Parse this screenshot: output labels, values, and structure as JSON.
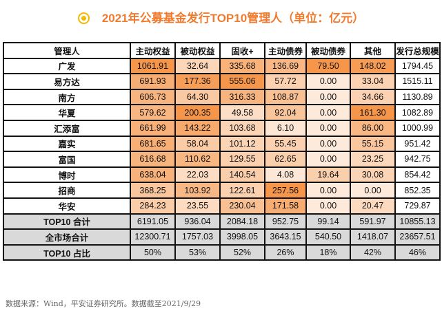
{
  "title": "2021年公募基金发行TOP10管理人（单位：亿元）",
  "colors": {
    "low": "#fdeadb",
    "high": "#f5964a",
    "summary": "#d9d9d9",
    "title": "#f07b2e"
  },
  "headers": [
    "管理人",
    "主动权益",
    "被动权益",
    "固收+",
    "主动债券",
    "被动债券",
    "其他",
    "发行总规模"
  ],
  "rows": [
    [
      "广发",
      "1061.91",
      "32.64",
      "335.68",
      "136.69",
      "79.50",
      "148.02",
      "1794.45"
    ],
    [
      "易方达",
      "691.93",
      "177.36",
      "555.06",
      "57.72",
      "0.00",
      "33.04",
      "1515.11"
    ],
    [
      "南方",
      "606.73",
      "64.30",
      "316.33",
      "108.87",
      "0.00",
      "34.66",
      "1130.89"
    ],
    [
      "华夏",
      "579.62",
      "200.35",
      "49.58",
      "92.04",
      "0.00",
      "161.30",
      "1082.89"
    ],
    [
      "汇添富",
      "661.99",
      "143.22",
      "103.68",
      "6.10",
      "0.00",
      "86.00",
      "1000.99"
    ],
    [
      "嘉实",
      "681.65",
      "58.04",
      "101.12",
      "55.45",
      "0.00",
      "55.15",
      "951.42"
    ],
    [
      "富国",
      "616.68",
      "110.62",
      "129.55",
      "62.65",
      "0.00",
      "23.25",
      "942.75"
    ],
    [
      "博时",
      "638.04",
      "22.03",
      "140.54",
      "4.08",
      "19.64",
      "30.08",
      "854.42"
    ],
    [
      "招商",
      "368.25",
      "103.92",
      "122.61",
      "257.56",
      "0.00",
      "0.00",
      "852.35"
    ],
    [
      "华安",
      "284.23",
      "23.55",
      "230.04",
      "171.58",
      "0.00",
      "20.47",
      "729.87"
    ]
  ],
  "summary": [
    [
      "TOP10 合计",
      "6191.05",
      "936.04",
      "2084.18",
      "952.75",
      "99.14",
      "591.97",
      "10855.13"
    ],
    [
      "全市场合计",
      "12300.71",
      "1757.03",
      "3998.05",
      "3643.15",
      "540.50",
      "1418.07",
      "23657.51"
    ],
    [
      "TOP10 占比",
      "50%",
      "53%",
      "52%",
      "26%",
      "18%",
      "42%",
      "46%"
    ]
  ],
  "source": "数据来源：Wind，平安证券研究所。数据截至2021/9/29"
}
